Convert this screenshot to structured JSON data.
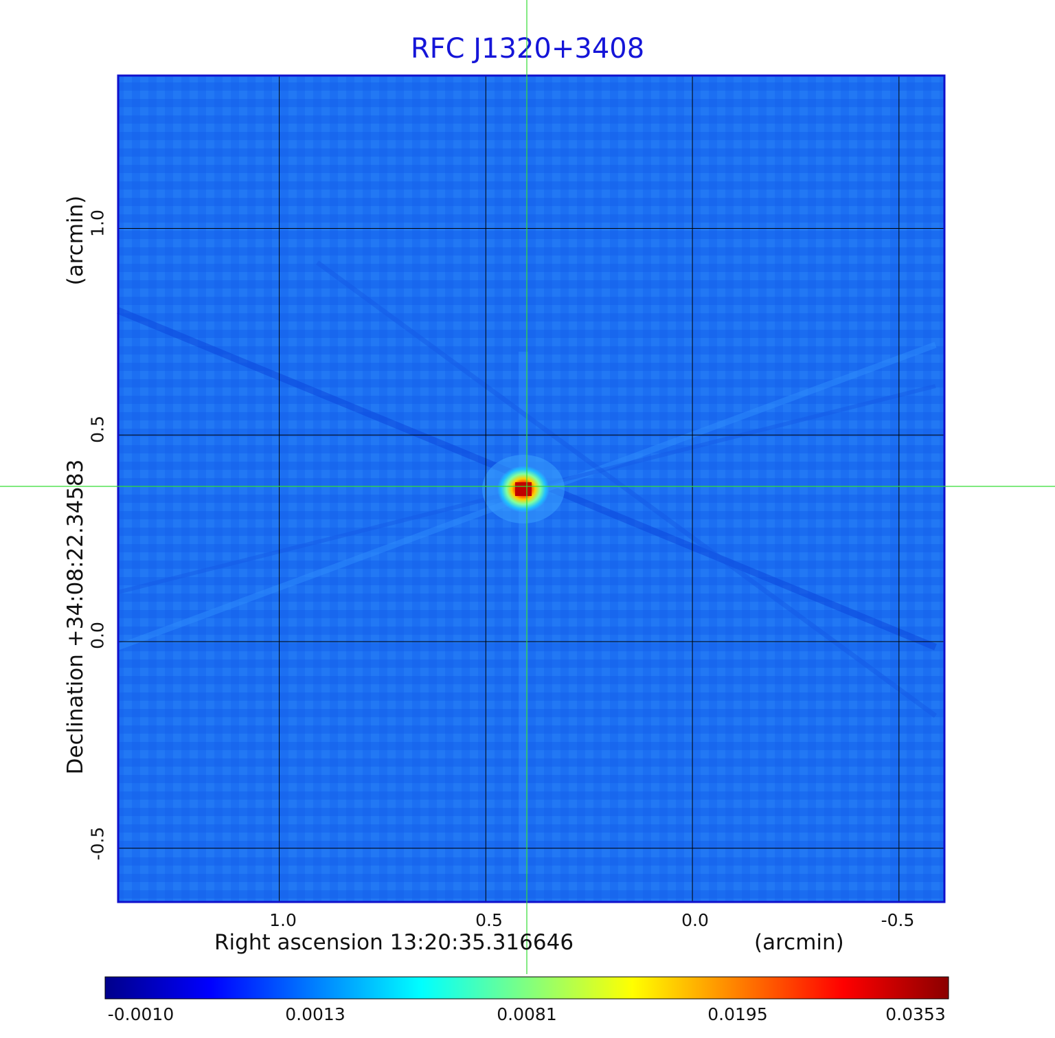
{
  "title": "RFC J1320+3408",
  "x_axis": {
    "label": "Right ascension  13:20:35.316646",
    "unit": "(arcmin)",
    "ticks": [
      "1.0",
      "0.5",
      "0.0",
      "-0.5"
    ]
  },
  "y_axis": {
    "label": "Declination  +34:08:22.34583",
    "unit": "(arcmin)",
    "ticks": [
      "1.0",
      "0.5",
      "0.0",
      "-0.5"
    ]
  },
  "colorbar": {
    "ticks": [
      "-0.0010",
      "0.0013",
      "0.0081",
      "0.0195",
      "0.0353"
    ],
    "colors": [
      "#00008b",
      "#0000ff",
      "#0080ff",
      "#00ffff",
      "#80ff80",
      "#ffff00",
      "#ff8000",
      "#ff0000",
      "#8b0000"
    ]
  },
  "colors": {
    "title": "#1515d8",
    "frame": "#1010cc",
    "background_field": "#1a6cf0",
    "crosshair": "#33dd33",
    "grid": "#000000"
  },
  "chart_data": {
    "type": "heatmap",
    "title": "RFC J1320+3408",
    "xlabel": "Right ascension  13:20:35.316646",
    "ylabel": "Declination  +34:08:22.34583",
    "x_ticks": [
      1.0,
      0.5,
      0.0,
      -0.5
    ],
    "y_ticks": [
      1.0,
      0.5,
      0.0,
      -0.5
    ],
    "xlim": [
      1.39,
      -0.61
    ],
    "ylim": [
      -0.63,
      1.37
    ],
    "source": {
      "x": 0.4,
      "y": 0.37,
      "peak": 0.0353
    },
    "crosshair": {
      "x": 0.4,
      "y": 0.375
    },
    "value_range": [
      -0.001,
      0.0353
    ],
    "grid": true
  }
}
